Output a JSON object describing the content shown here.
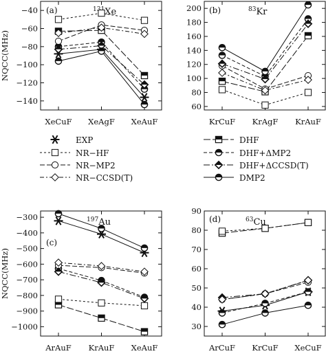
{
  "chart_data": [
    {
      "type": "line",
      "panel_label": "(a)",
      "isotope": {
        "mass": "131",
        "element": "Xe"
      },
      "categories": [
        "XeCuF",
        "XeAgF",
        "XeAuF"
      ],
      "ylabel": "NQCC(MHz)",
      "ylim": [
        -150,
        -30
      ],
      "yticks": [
        -40,
        -60,
        -80,
        -100,
        -120,
        -140
      ],
      "series": [
        {
          "name": "EXP",
          "values": [
            -88,
            -83,
            -136
          ]
        },
        {
          "name": "DHF",
          "values": [
            -63,
            -62,
            -112
          ]
        },
        {
          "name": "NR−HF",
          "values": [
            -50,
            -43,
            -51
          ]
        },
        {
          "name": "DHF+ΔMP2",
          "values": [
            -80,
            -75,
            -127
          ]
        },
        {
          "name": "NR−MP2",
          "values": [
            -74,
            -56,
            -62
          ]
        },
        {
          "name": "DHF+ΔCCSD(T)",
          "values": [
            -83,
            -79,
            -122
          ]
        },
        {
          "name": "NR−CCSD(T)",
          "values": [
            -65,
            -59,
            -66
          ]
        },
        {
          "name": "DMP2",
          "values": [
            -96,
            -85,
            -144
          ]
        }
      ]
    },
    {
      "type": "line",
      "panel_label": "(b)",
      "isotope": {
        "mass": "83",
        "element": "Kr"
      },
      "categories": [
        "KrCuF",
        "KrAgF",
        "KrAuF"
      ],
      "ylabel": "",
      "ylim": [
        55,
        210
      ],
      "yticks": [
        60,
        80,
        100,
        120,
        140,
        160,
        180,
        200
      ],
      "series": [
        {
          "name": "DHF",
          "values": [
            96,
            81,
            161
          ]
        },
        {
          "name": "NR−HF",
          "values": [
            84,
            62,
            80
          ]
        },
        {
          "name": "DHF+ΔMP2",
          "values": [
            133,
            103,
            185
          ]
        },
        {
          "name": "NR−MP2",
          "values": [
            118,
            85,
            104
          ]
        },
        {
          "name": "DHF+ΔCCSD(T)",
          "values": [
            121,
            99,
            178
          ]
        },
        {
          "name": "NR−CCSD(T)",
          "values": [
            108,
            83,
            98
          ]
        },
        {
          "name": "DMP2",
          "values": [
            144,
            110,
            205
          ]
        }
      ]
    },
    {
      "type": "line",
      "panel_label": "(c)",
      "isotope": {
        "mass": "197",
        "element": "Au"
      },
      "categories": [
        "ArAuF",
        "KrAuF",
        "XeAuF"
      ],
      "ylabel": "NQCC(MHz)",
      "ylim": [
        -1060,
        -260
      ],
      "yticks": [
        -300,
        -400,
        -500,
        -600,
        -700,
        -800,
        -900,
        -1000
      ],
      "series": [
        {
          "name": "EXP",
          "values": [
            -323,
            -408,
            -527
          ]
        },
        {
          "name": "DHF",
          "values": [
            -860,
            -945,
            -1032
          ]
        },
        {
          "name": "NR−HF",
          "values": [
            -824,
            -848,
            -866
          ]
        },
        {
          "name": "DHF+ΔMP2",
          "values": [
            -628,
            -705,
            -812
          ]
        },
        {
          "name": "NR−MP2",
          "values": [
            -608,
            -622,
            -657
          ]
        },
        {
          "name": "DHF+ΔCCSD(T)",
          "values": [
            -648,
            -718,
            -820
          ]
        },
        {
          "name": "NR−CCSD(T)",
          "values": [
            -590,
            -612,
            -648
          ]
        },
        {
          "name": "DMP2",
          "values": [
            -277,
            -372,
            -497
          ]
        }
      ]
    },
    {
      "type": "line",
      "panel_label": "(d)",
      "isotope": {
        "mass": "63",
        "element": "Cu"
      },
      "categories": [
        "ArCuF",
        "KrCuF",
        "XeCuF"
      ],
      "ylabel": "",
      "ylim": [
        25,
        90
      ],
      "yticks": [
        30,
        40,
        50,
        60,
        70,
        80,
        90
      ],
      "series": [
        {
          "name": "EXP",
          "values": [
            38,
            41,
            48
          ]
        },
        {
          "name": "DHF",
          "values": [
            78.5,
            81,
            84
          ]
        },
        {
          "name": "NR−HF",
          "values": [
            79.5,
            81,
            84
          ]
        },
        {
          "name": "DHF+ΔMP2",
          "values": [
            37,
            42,
            48
          ]
        },
        {
          "name": "NR−MP2",
          "values": [
            44,
            47,
            53
          ]
        },
        {
          "name": "DHF+ΔCCSD(T)",
          "values": [
            45,
            47,
            54
          ]
        },
        {
          "name": "NR−CCSD(T)",
          "values": [
            44,
            47,
            54
          ]
        },
        {
          "name": "DMP2",
          "values": [
            31,
            37,
            41
          ]
        }
      ]
    }
  ],
  "legend": {
    "left": [
      "EXP",
      "NR−HF",
      "NR−MP2",
      "NR−CCSD(T)"
    ],
    "right": [
      "DHF",
      "DHF+ΔMP2",
      "DHF+ΔCCSD(T)",
      "DMP2"
    ]
  }
}
